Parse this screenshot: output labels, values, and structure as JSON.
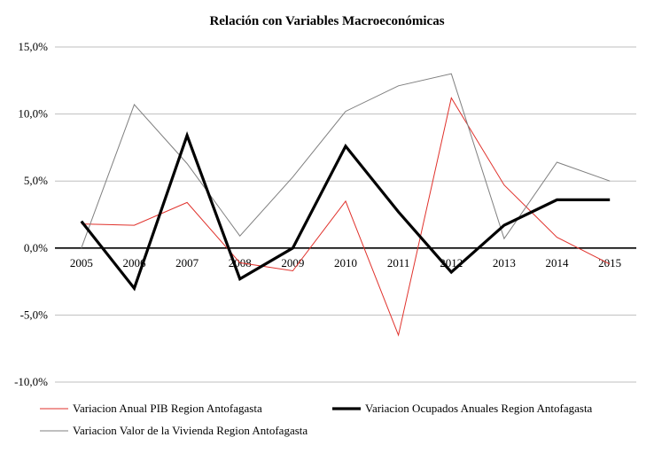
{
  "chart_data": {
    "type": "line",
    "title": "Relación con Variables Macroeconómicas",
    "xlabel": "",
    "ylabel": "",
    "categories": [
      "2005",
      "2006",
      "2007",
      "2008",
      "2009",
      "2010",
      "2011",
      "2012",
      "2013",
      "2014",
      "2015"
    ],
    "ylim": [
      -10,
      15
    ],
    "yticks": [
      15,
      10,
      5,
      0,
      -5,
      -10
    ],
    "ytick_labels": [
      "15,0%",
      "10,0%",
      "5,0%",
      "0,0%",
      "-5,0%",
      "-10,0%"
    ],
    "grid": true,
    "legend_position": "bottom",
    "series": [
      {
        "name": "Variacion Anual PIB Region Antofagasta",
        "color": "#e0312b",
        "width": "thin",
        "values": [
          1.8,
          1.7,
          3.4,
          -1.1,
          -1.7,
          3.5,
          -6.5,
          11.2,
          4.7,
          0.8,
          -1.2
        ]
      },
      {
        "name": "Variacion Ocupados Anuales Region Antofagasta",
        "color": "#000000",
        "width": "thick",
        "values": [
          2.0,
          -3.0,
          8.4,
          -2.3,
          0.0,
          7.6,
          2.7,
          -1.8,
          1.7,
          3.6,
          3.6
        ]
      },
      {
        "name": "Variacion Valor de la Vivienda Region Antofagasta",
        "color": "#7f7f7f",
        "width": "thin",
        "values": [
          0.0,
          10.7,
          6.3,
          0.9,
          5.3,
          10.2,
          12.1,
          13.0,
          0.7,
          6.4,
          5.0
        ]
      }
    ]
  }
}
